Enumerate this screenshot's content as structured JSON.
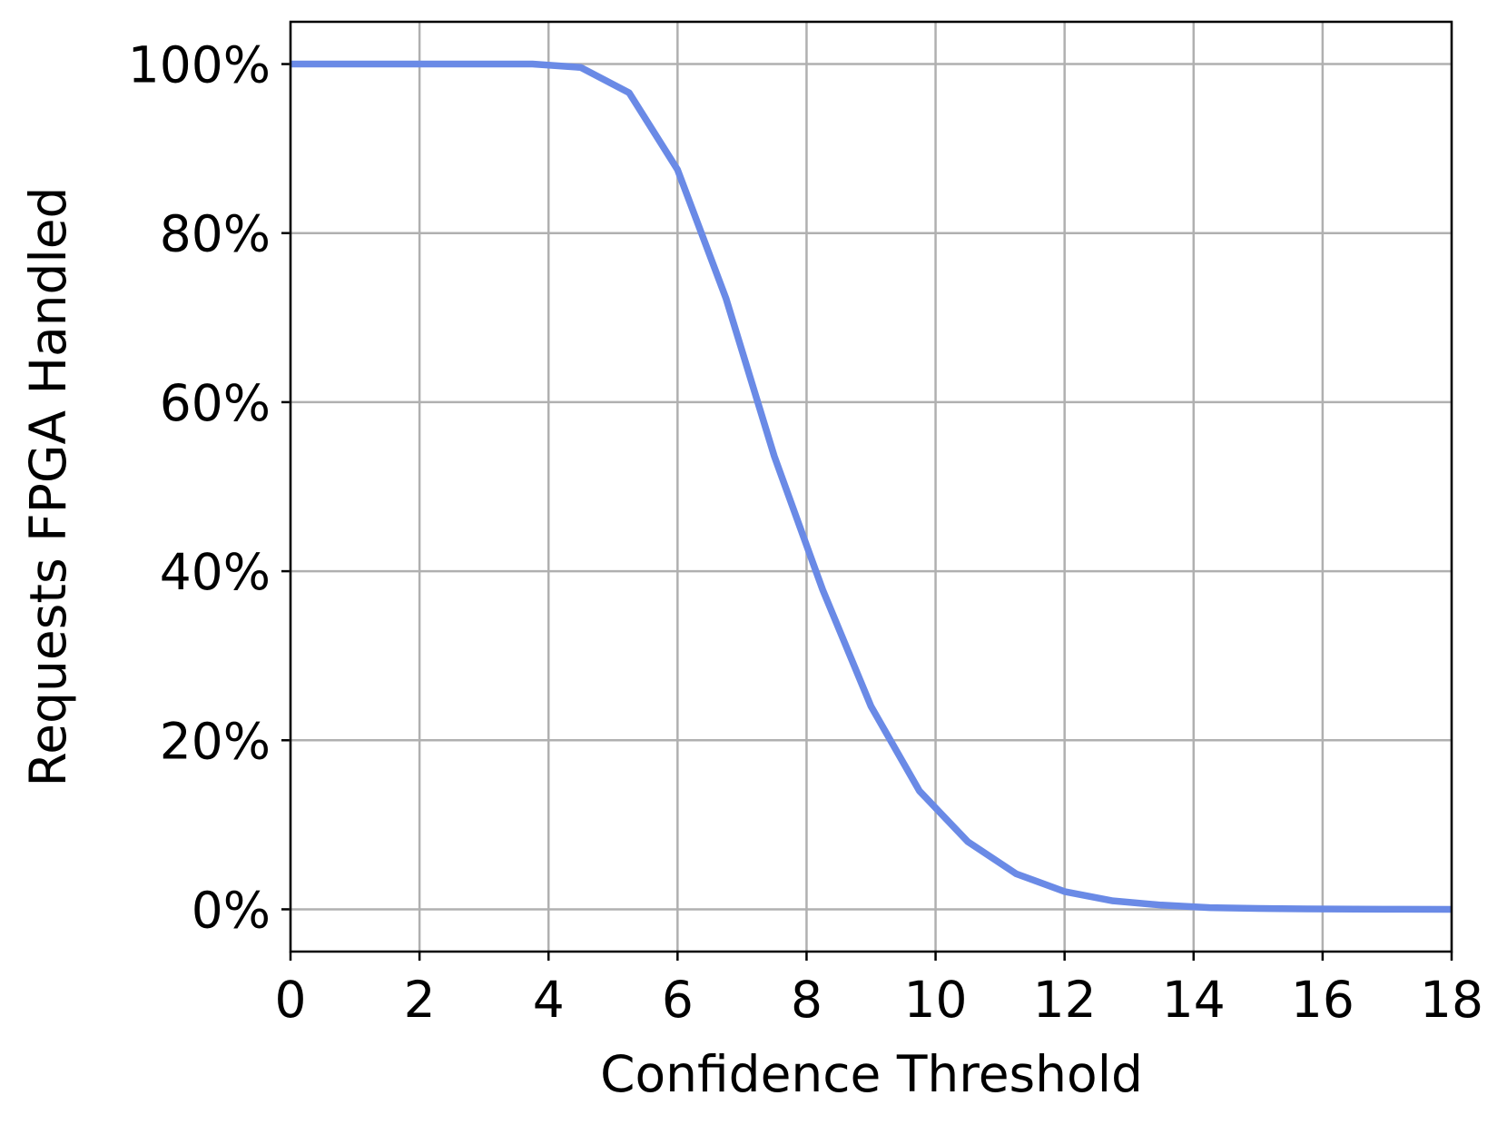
{
  "chart_data": {
    "type": "line",
    "x_label": "Confidence Threshold",
    "y_label": "Requests FPGA Handled",
    "x": [
      0,
      0.75,
      1.5,
      2.25,
      3,
      3.75,
      4.5,
      5.25,
      6,
      6.75,
      7.5,
      8.25,
      9,
      9.75,
      10.5,
      11.25,
      12,
      12.75,
      13.5,
      14.25,
      15,
      15.75,
      16.5,
      17.25,
      18
    ],
    "series": [
      {
        "color": "#6a8ae6",
        "values": [
          100,
          100,
          100,
          100,
          100,
          100,
          99.6,
          96.6,
          87.5,
          72.3,
          53.6,
          37.8,
          24,
          14,
          8,
          4.2,
          2.1,
          1.0,
          0.5,
          0.2,
          0.1,
          0.05,
          0.02,
          0.01,
          0
        ]
      }
    ],
    "xlim": [
      0,
      18
    ],
    "xticks": [
      0,
      2,
      4,
      6,
      8,
      10,
      12,
      14,
      16,
      18
    ],
    "ylim": [
      -5,
      105
    ],
    "yticks": [
      {
        "value": 0,
        "label": "0%"
      },
      {
        "value": 20,
        "label": "20%"
      },
      {
        "value": 40,
        "label": "40%"
      },
      {
        "value": 60,
        "label": "60%"
      },
      {
        "value": 80,
        "label": "80%"
      },
      {
        "value": 100,
        "label": "100%"
      }
    ],
    "grid": true
  }
}
